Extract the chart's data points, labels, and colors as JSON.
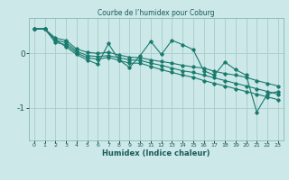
{
  "title": "Courbe de l’humidex pour Coburg",
  "xlabel": "Humidex (Indice chaleur)",
  "bg_color": "#cce8e8",
  "grid_color": "#aacccc",
  "line_color": "#1a7a6e",
  "xlim": [
    -0.5,
    23.5
  ],
  "ylim": [
    -1.6,
    0.65
  ],
  "yticks": [
    0,
    -1
  ],
  "xticks": [
    0,
    1,
    2,
    3,
    4,
    5,
    6,
    7,
    8,
    9,
    10,
    11,
    12,
    13,
    14,
    15,
    16,
    17,
    18,
    19,
    20,
    21,
    22,
    23
  ],
  "series": [
    [
      0.45,
      0.45,
      0.28,
      0.24,
      0.08,
      0.02,
      0.0,
      0.02,
      -0.03,
      -0.07,
      -0.08,
      -0.12,
      -0.15,
      -0.18,
      -0.22,
      -0.25,
      -0.27,
      -0.33,
      -0.37,
      -0.4,
      -0.44,
      -0.5,
      -0.55,
      -0.6
    ],
    [
      0.45,
      0.45,
      0.24,
      0.2,
      0.04,
      -0.04,
      -0.06,
      -0.04,
      -0.08,
      -0.12,
      -0.13,
      -0.18,
      -0.22,
      -0.27,
      -0.32,
      -0.35,
      -0.4,
      -0.45,
      -0.5,
      -0.55,
      -0.6,
      -0.65,
      -0.7,
      -0.75
    ],
    [
      0.45,
      0.45,
      0.2,
      0.16,
      0.01,
      -0.08,
      -0.11,
      -0.07,
      -0.13,
      -0.18,
      -0.18,
      -0.24,
      -0.3,
      -0.35,
      -0.4,
      -0.44,
      -0.5,
      -0.55,
      -0.6,
      -0.65,
      -0.7,
      -0.75,
      -0.8,
      -0.85
    ],
    [
      0.45,
      0.45,
      0.25,
      0.12,
      -0.02,
      -0.12,
      -0.2,
      0.18,
      -0.12,
      -0.26,
      -0.04,
      0.22,
      -0.02,
      0.24,
      0.16,
      0.07,
      -0.32,
      -0.4,
      -0.16,
      -0.3,
      -0.4,
      -1.08,
      -0.75,
      -0.7
    ]
  ]
}
